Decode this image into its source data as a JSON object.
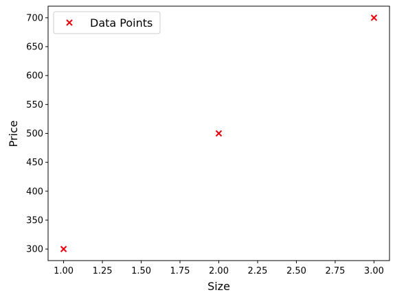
{
  "chart_data": {
    "type": "scatter",
    "title": "",
    "xlabel": "Size",
    "ylabel": "Price",
    "xlim": [
      0.9,
      3.1
    ],
    "ylim": [
      280,
      720
    ],
    "xticks": [
      "1.00",
      "1.25",
      "1.50",
      "1.75",
      "2.00",
      "2.25",
      "2.50",
      "2.75",
      "3.00"
    ],
    "yticks": [
      "300",
      "350",
      "400",
      "450",
      "500",
      "550",
      "600",
      "650",
      "700"
    ],
    "grid": false,
    "legend_position": "top-left",
    "series": [
      {
        "name": "Data Points",
        "marker": "x",
        "color": "#e8000b",
        "x": [
          1.0,
          2.0,
          3.0
        ],
        "y": [
          300,
          500,
          700
        ]
      }
    ]
  }
}
